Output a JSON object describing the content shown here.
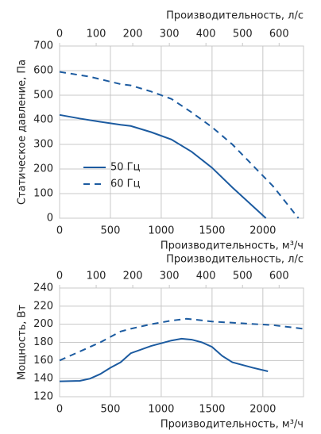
{
  "chart_data": [
    {
      "type": "line",
      "xlabel": "Производительность, м³/ч",
      "x2label": "Производительность, л/с",
      "ylabel": "Статическое давление, Па",
      "xlim": [
        0,
        2400
      ],
      "xticks": [
        0,
        500,
        1000,
        1500,
        2000
      ],
      "x2lim": [
        0,
        666.7
      ],
      "x2ticks": [
        0,
        100,
        200,
        300,
        400,
        500,
        600
      ],
      "ylim": [
        0,
        700
      ],
      "yticks": [
        0,
        100,
        200,
        300,
        400,
        500,
        600,
        700
      ],
      "grid": true,
      "legend": "lower left",
      "series": [
        {
          "name": "50 Гц",
          "color": "#1c5ba0",
          "dash": false,
          "x": [
            0,
            200,
            400,
            600,
            700,
            900,
            1100,
            1300,
            1500,
            1700,
            2030
          ],
          "values": [
            420,
            405,
            392,
            380,
            375,
            350,
            320,
            270,
            205,
            125,
            0
          ]
        },
        {
          "name": "60 Гц",
          "color": "#1c5ba0",
          "dash": true,
          "x": [
            0,
            300,
            600,
            700,
            900,
            1100,
            1300,
            1500,
            1700,
            1900,
            2100,
            2350
          ],
          "values": [
            595,
            575,
            545,
            540,
            515,
            485,
            430,
            370,
            300,
            215,
            130,
            0
          ]
        }
      ]
    },
    {
      "type": "line",
      "xlabel": "Производительность, м³/ч",
      "x2label": "Производительность, л/с",
      "ylabel": "Мощность, Вт",
      "xlim": [
        0,
        2400
      ],
      "xticks": [
        0,
        500,
        1000,
        1500,
        2000
      ],
      "x2lim": [
        0,
        666.7
      ],
      "x2ticks": [
        0,
        100,
        200,
        300,
        400,
        500,
        600
      ],
      "ylim": [
        120,
        240
      ],
      "yticks": [
        120,
        140,
        160,
        180,
        200,
        220,
        240
      ],
      "grid": true,
      "series": [
        {
          "color": "#1c5ba0",
          "dash": false,
          "x": [
            0,
            200,
            300,
            400,
            500,
            600,
            700,
            900,
            1100,
            1200,
            1300,
            1400,
            1500,
            1600,
            1700,
            1900,
            2050
          ],
          "values": [
            137,
            137.5,
            140,
            145,
            152,
            158,
            168,
            176,
            182,
            184,
            183,
            180,
            175,
            165,
            158,
            152,
            148
          ]
        },
        {
          "color": "#1c5ba0",
          "dash": true,
          "x": [
            0,
            200,
            400,
            500,
            600,
            700,
            900,
            1100,
            1250,
            1300,
            1500,
            1800,
            2100,
            2400
          ],
          "values": [
            160,
            170,
            180,
            186,
            192,
            195,
            200,
            204,
            206,
            205.5,
            203,
            201,
            199,
            195
          ]
        }
      ]
    }
  ]
}
